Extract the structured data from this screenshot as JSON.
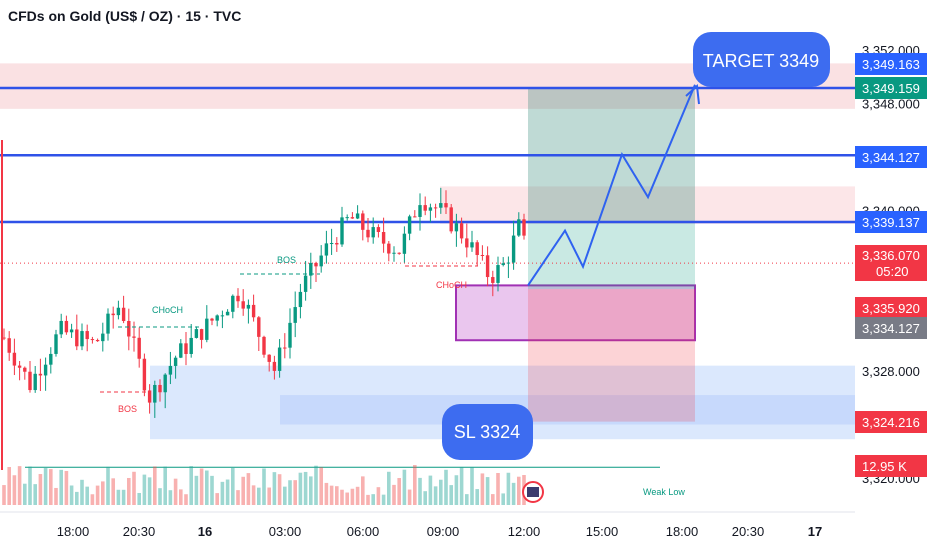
{
  "title": "CFDs on Gold (US$ / OZ) · 15 · TVC",
  "chart_data": {
    "type": "candlestick",
    "symbol": "CFDs on Gold (US$ / OZ)",
    "interval": "15",
    "source": "TVC",
    "y_axis": {
      "ticks": [
        3352.0,
        3348.0,
        3340.0,
        3328.0,
        3320.0
      ],
      "tick_labels": [
        "3,352.000",
        "3,348.000",
        "3,340.000",
        "3,328.000",
        "3,320.000"
      ],
      "range": [
        3316.4,
        3354.0
      ]
    },
    "x_axis": {
      "tick_labels": [
        "18:00",
        "20:30",
        "16",
        "03:00",
        "06:00",
        "09:00",
        "12:00",
        "15:00",
        "18:00",
        "20:30",
        "17"
      ]
    },
    "horizontal_lines": [
      {
        "name": "target-line",
        "value": 3349.159,
        "color": "#2f52e8"
      },
      {
        "name": "resistance-line",
        "value": 3344.127,
        "color": "#2f52e8"
      },
      {
        "name": "mid-line",
        "value": 3339.137,
        "color": "#2f52e8"
      },
      {
        "name": "last-price-line",
        "value": 3336.07,
        "color": "#f23645"
      },
      {
        "name": "weak-low-line",
        "value": 3320.8,
        "color": "#089981"
      }
    ],
    "price_tags": [
      {
        "label": "3,349.163",
        "color": "#2962ff"
      },
      {
        "label": "3,349.159",
        "color": "#089981"
      },
      {
        "label": "3,344.127",
        "color": "#2962ff"
      },
      {
        "label": "3,339.137",
        "color": "#2962ff"
      },
      {
        "label": "3,336.070",
        "sub": "05:20",
        "color": "#f23645"
      },
      {
        "label": "3,335.920",
        "color": "#f23645"
      },
      {
        "label": "3,334.127",
        "color": "#787b86"
      },
      {
        "label": "3,324.216",
        "color": "#f23645"
      },
      {
        "label": "12.95 K",
        "color": "#f23645"
      }
    ],
    "annotations": [
      "CHoCH",
      "BOS",
      "BOS",
      "CHoCH",
      "Weak Low"
    ],
    "callouts": {
      "target": "TARGET 3349",
      "stop": "SL 3324"
    },
    "position": {
      "entry": 3334.127,
      "target": 3349.159,
      "stop": 3324.216
    },
    "projected_path": [
      3334.4,
      3338.5,
      3335.8,
      3344.2,
      3341.0,
      3349.4
    ],
    "zones": [
      {
        "name": "supply-zone-top",
        "top": 3351.0,
        "bottom": 3347.6,
        "color": "#f8d7da"
      },
      {
        "name": "supply-zone-mid",
        "top": 3341.8,
        "bottom": 3339.0,
        "color": "#fbdde0"
      },
      {
        "name": "demand-box",
        "top": 3334.4,
        "bottom": 3330.3,
        "color": "#e9c4ee"
      },
      {
        "name": "demand-zone-low",
        "top": 3328.4,
        "bottom": 3322.9,
        "color": "#cfe0fc"
      }
    ]
  }
}
